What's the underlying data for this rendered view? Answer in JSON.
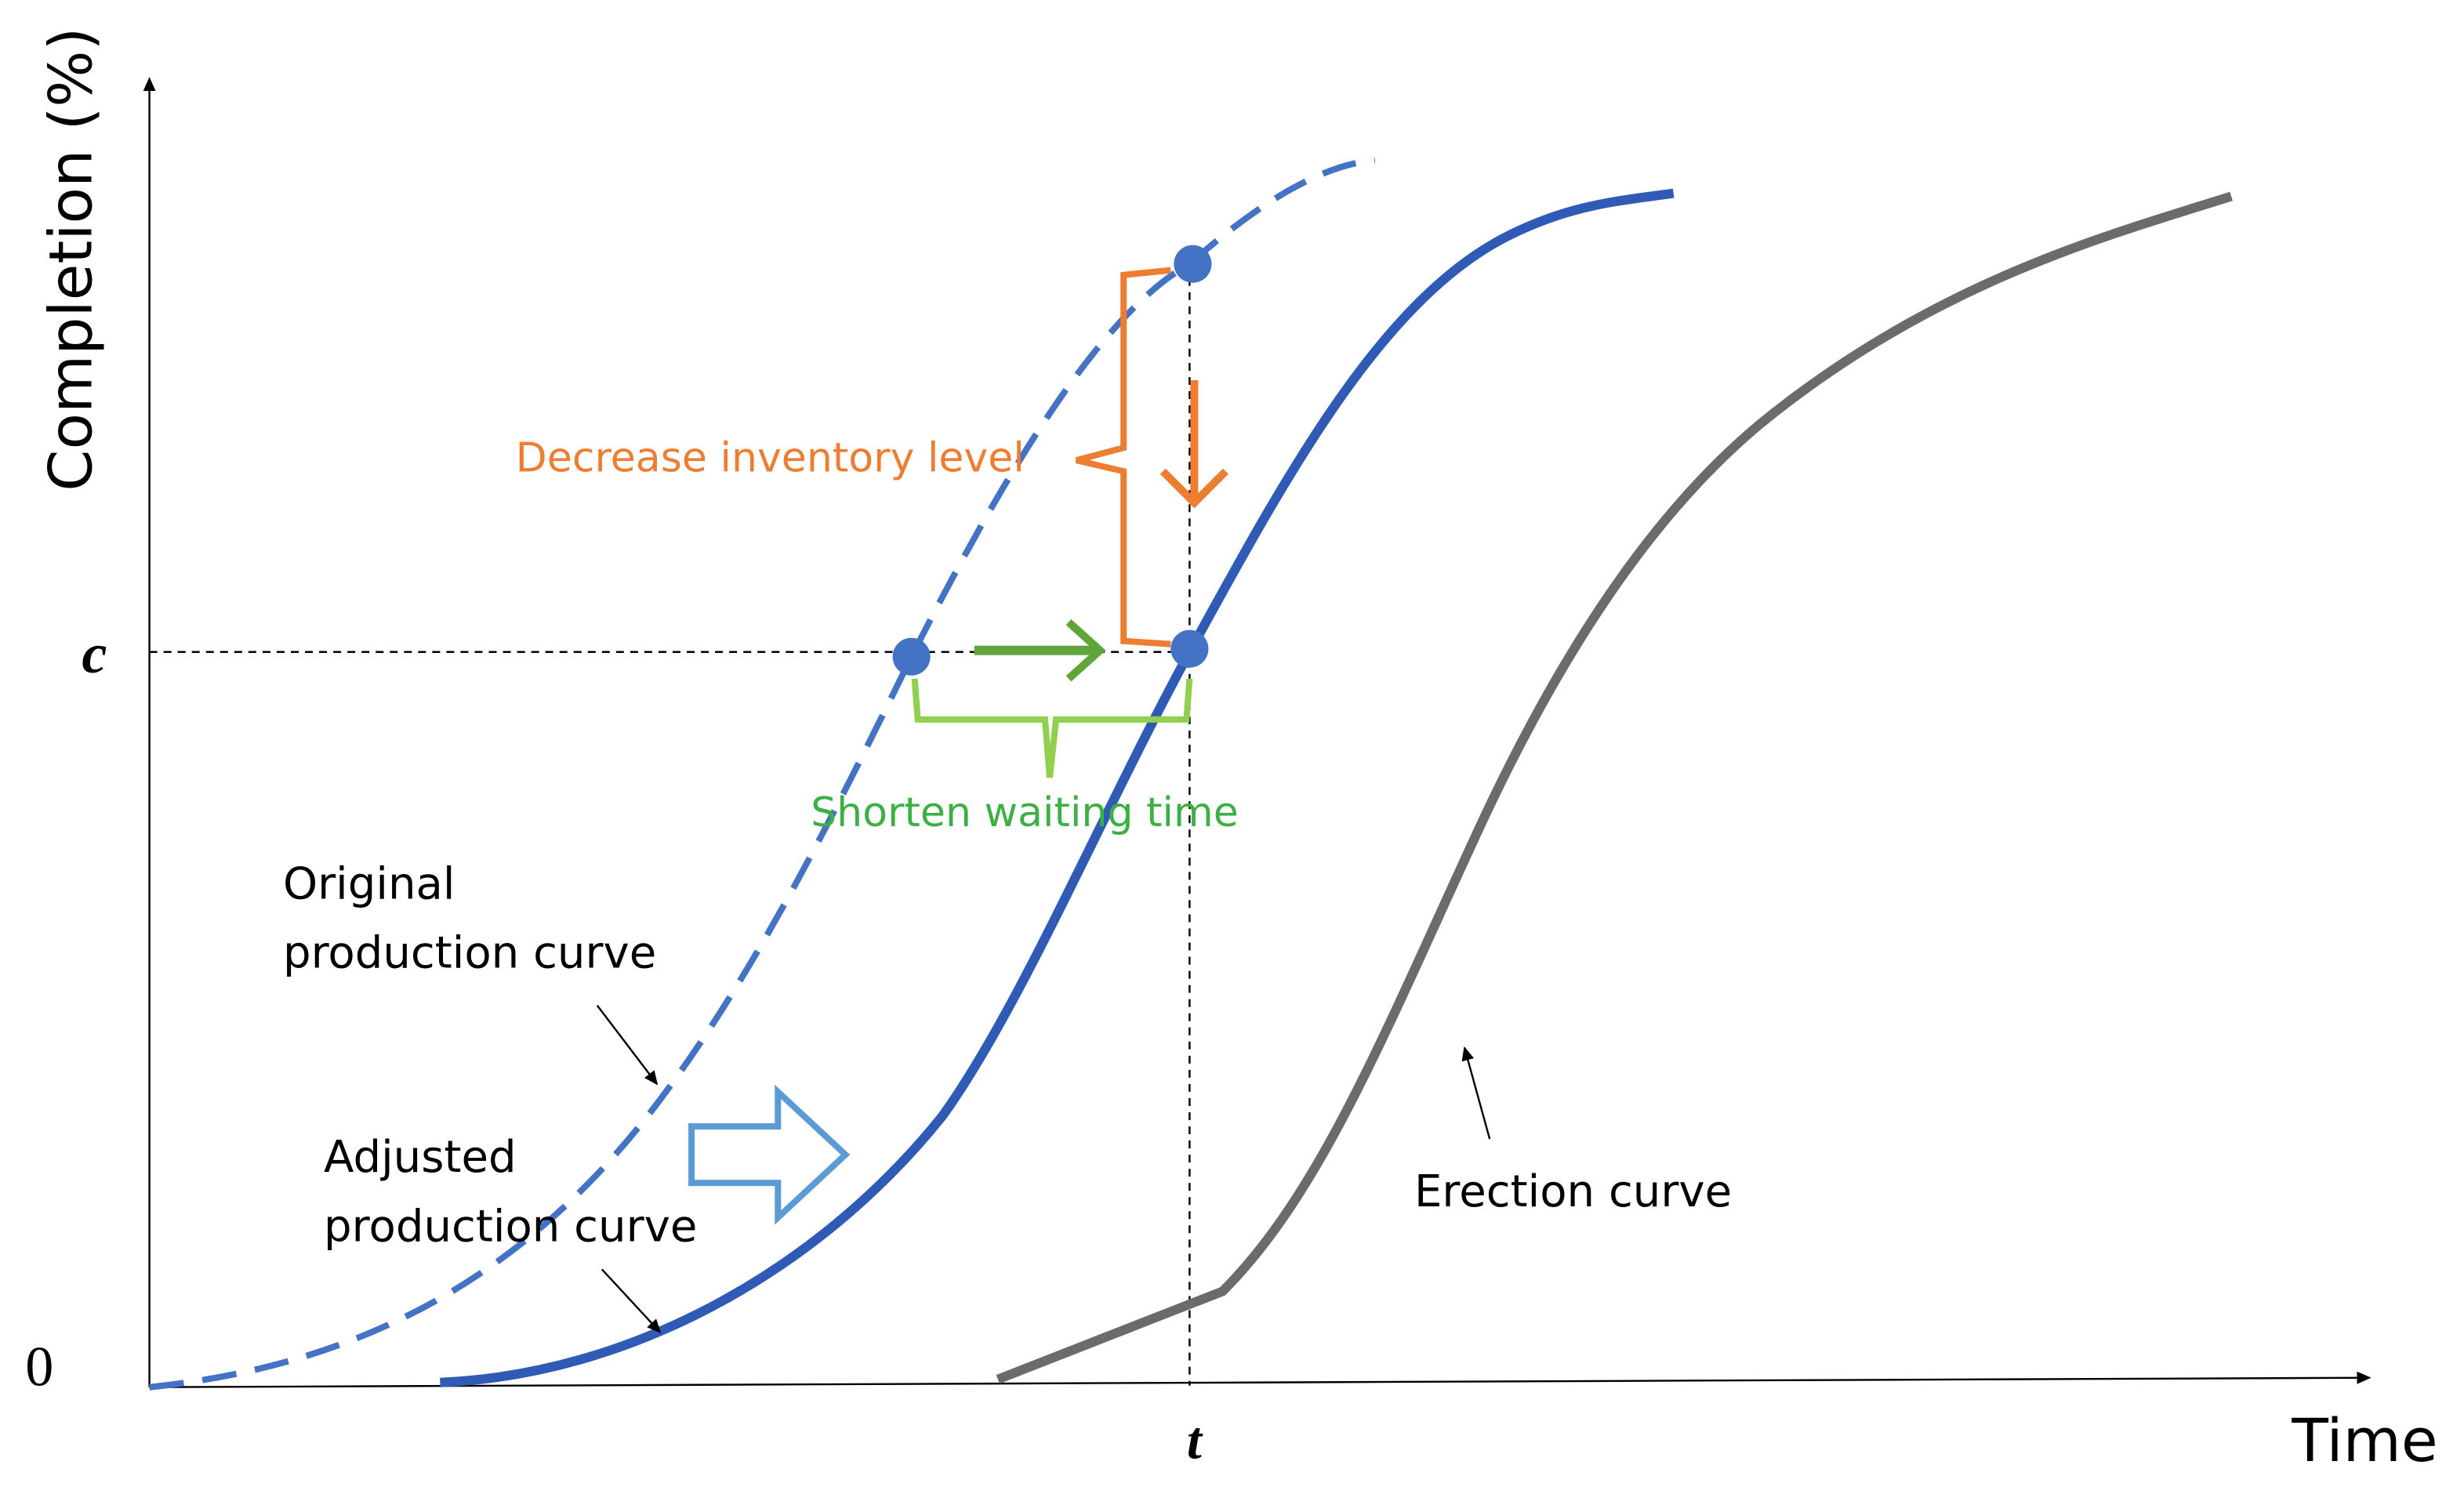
{
  "axes": {
    "y_label": "Completion (%)",
    "x_label": "Time",
    "y_mark": "c",
    "origin": "0",
    "x_mark": "t"
  },
  "annotations": {
    "inventory": "Decrease inventory level",
    "waiting": "Shorten waiting time"
  },
  "labels": {
    "original": [
      "Original",
      "production curve"
    ],
    "adjusted": [
      "Adjusted",
      "production curve"
    ],
    "erection": "Erection curve"
  }
}
